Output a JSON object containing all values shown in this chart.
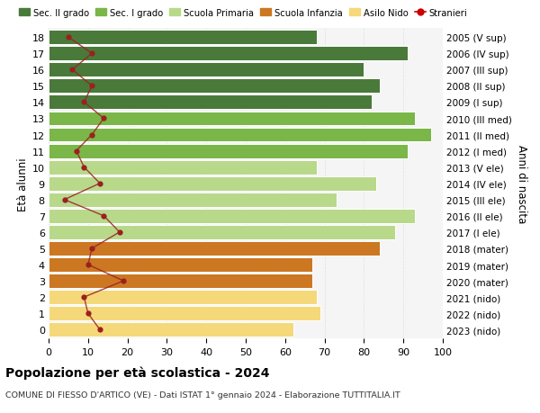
{
  "ages": [
    18,
    17,
    16,
    15,
    14,
    13,
    12,
    11,
    10,
    9,
    8,
    7,
    6,
    5,
    4,
    3,
    2,
    1,
    0
  ],
  "right_labels": [
    "2005 (V sup)",
    "2006 (IV sup)",
    "2007 (III sup)",
    "2008 (II sup)",
    "2009 (I sup)",
    "2010 (III med)",
    "2011 (II med)",
    "2012 (I med)",
    "2013 (V ele)",
    "2014 (IV ele)",
    "2015 (III ele)",
    "2016 (II ele)",
    "2017 (I ele)",
    "2018 (mater)",
    "2019 (mater)",
    "2020 (mater)",
    "2021 (nido)",
    "2022 (nido)",
    "2023 (nido)"
  ],
  "bar_values": [
    68,
    91,
    80,
    84,
    82,
    93,
    97,
    91,
    68,
    83,
    73,
    93,
    88,
    84,
    67,
    67,
    68,
    69,
    62
  ],
  "bar_colors": [
    "#4a7a3a",
    "#4a7a3a",
    "#4a7a3a",
    "#4a7a3a",
    "#4a7a3a",
    "#7ab648",
    "#7ab648",
    "#7ab648",
    "#b8d98a",
    "#b8d98a",
    "#b8d98a",
    "#b8d98a",
    "#b8d98a",
    "#cc7722",
    "#cc7722",
    "#cc7722",
    "#f5d87a",
    "#f5d87a",
    "#f5d87a"
  ],
  "stranieri_values": [
    5,
    11,
    6,
    11,
    9,
    14,
    11,
    7,
    9,
    13,
    4,
    14,
    18,
    11,
    10,
    19,
    9,
    10,
    13
  ],
  "legend_labels": [
    "Sec. II grado",
    "Sec. I grado",
    "Scuola Primaria",
    "Scuola Infanzia",
    "Asilo Nido",
    "Stranieri"
  ],
  "legend_colors": [
    "#4a7a3a",
    "#7ab648",
    "#b8d98a",
    "#cc7722",
    "#f5d87a",
    "#cc0000"
  ],
  "ylabel_left": "Età alunni",
  "ylabel_right": "Anni di nascita",
  "title_bold": "Popolazione per età scolastica - 2024",
  "subtitle": "COMUNE DI FIESSO D'ARTICO (VE) - Dati ISTAT 1° gennaio 2024 - Elaborazione TUTTITALIA.IT",
  "xlim": [
    0,
    100
  ],
  "xticks": [
    0,
    10,
    20,
    30,
    40,
    50,
    60,
    70,
    80,
    90,
    100
  ],
  "bg_color": "#ffffff",
  "plot_bg_color": "#f5f5f5",
  "line_color": "#9b2020",
  "grid_color": "#ffffff"
}
